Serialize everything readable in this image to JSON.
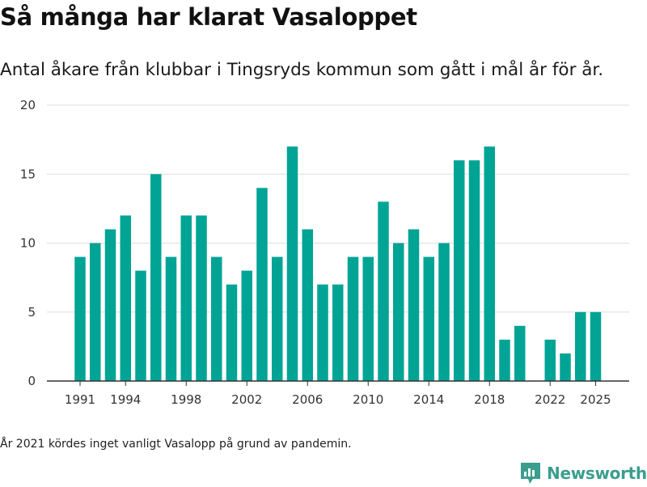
{
  "chart_data": {
    "type": "bar",
    "title": "Så många har klarat Vasaloppet",
    "subtitle": "Antal åkare från klubbar i Tingsryds kommun som gått i mål år för år.",
    "xlabel": "",
    "ylabel": "",
    "ylim": [
      0,
      20
    ],
    "yticks": [
      "0",
      "5",
      "10",
      "15",
      "20"
    ],
    "xticks": [
      "1991",
      "1994",
      "1998",
      "2002",
      "2006",
      "2010",
      "2014",
      "2018",
      "2022",
      "2025"
    ],
    "grid": true,
    "bar_color": "#00a495",
    "categories": [
      1991,
      1992,
      1993,
      1994,
      1995,
      1996,
      1997,
      1998,
      1999,
      2000,
      2001,
      2002,
      2003,
      2004,
      2005,
      2006,
      2007,
      2008,
      2009,
      2010,
      2011,
      2012,
      2013,
      2014,
      2015,
      2016,
      2017,
      2018,
      2019,
      2020,
      2021,
      2022,
      2023,
      2024,
      2025
    ],
    "values": [
      9,
      10,
      11,
      12,
      8,
      15,
      9,
      12,
      12,
      9,
      7,
      8,
      14,
      9,
      17,
      11,
      7,
      7,
      9,
      9,
      13,
      10,
      11,
      9,
      10,
      16,
      16,
      17,
      3,
      4,
      0,
      3,
      2,
      5,
      5
    ]
  },
  "footnote": "År 2021 kördes inget vanligt Vasalopp på grund av pandemin.",
  "brand": {
    "name": "Newsworthy",
    "icon": "bar-chart-logo-icon",
    "color": "#3a9e8f"
  }
}
